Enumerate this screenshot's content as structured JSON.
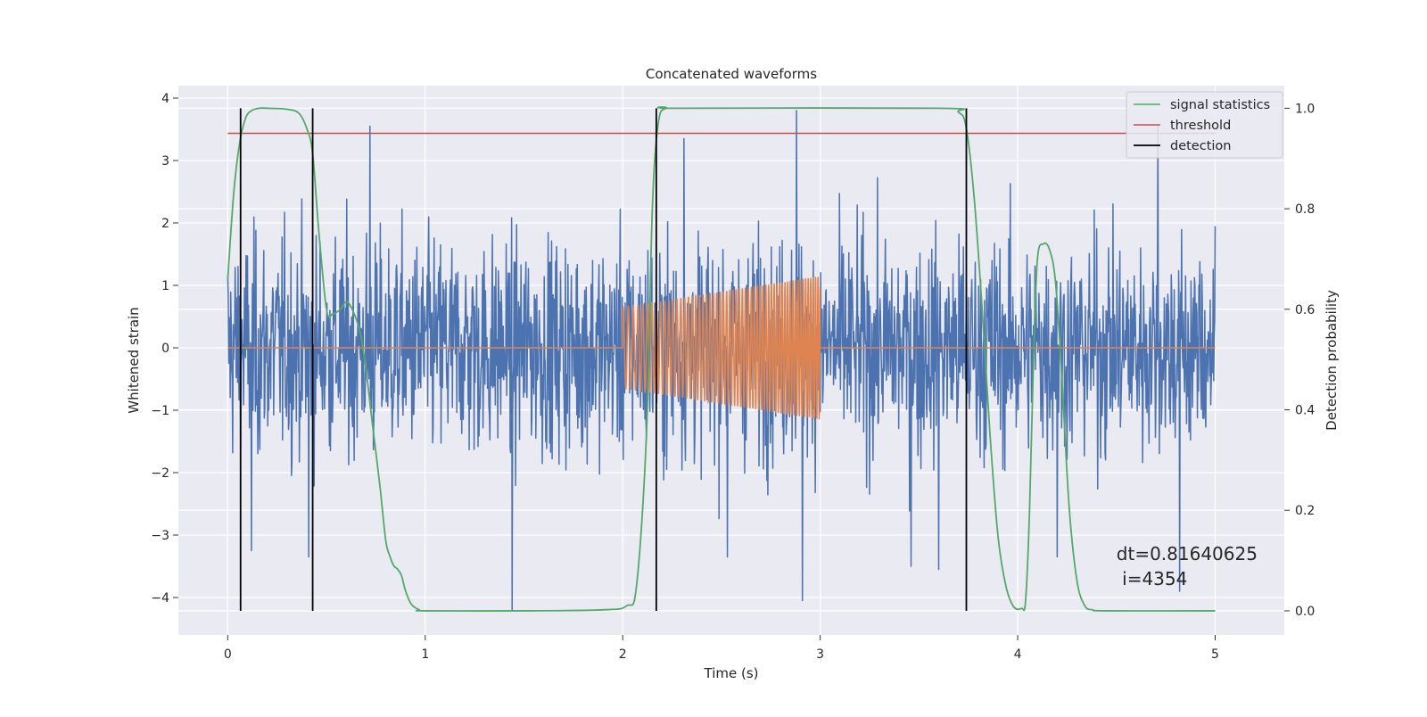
{
  "chart_data": {
    "type": "line",
    "title": "Concatenated waveforms",
    "xlabel": "Time (s)",
    "ylabel": "Whitened strain",
    "ylabel_right": "Detection probability",
    "xlim": [
      -0.25,
      5.35
    ],
    "ylim": [
      -4.6,
      4.2
    ],
    "ylim_right": [
      -0.048,
      1.045
    ],
    "x_ticks": [
      0,
      1,
      2,
      3,
      4,
      5
    ],
    "x_tick_labels": [
      "0",
      "1",
      "2",
      "3",
      "4",
      "5"
    ],
    "y_ticks": [
      -4,
      -3,
      -2,
      -1,
      0,
      1,
      2,
      3,
      4
    ],
    "y_tick_labels": [
      "−4",
      "−3",
      "−2",
      "−1",
      "0",
      "1",
      "2",
      "3",
      "4"
    ],
    "y2_ticks": [
      0.0,
      0.2,
      0.4,
      0.6,
      0.8,
      1.0
    ],
    "y2_tick_labels": [
      "0.0",
      "0.2",
      "0.4",
      "0.6",
      "0.8",
      "1.0"
    ],
    "grid": true,
    "legend_position": "top-right",
    "style": {
      "background": "#eaeaf2",
      "grid_color": "#ffffff",
      "strain_color": "#4c72b0",
      "template_color": "#dd8452",
      "signal_color": "#55a868",
      "threshold_color": "#c44e52",
      "detection_color": "#000000"
    },
    "series": [
      {
        "name": "",
        "axis": "left",
        "kind": "noise",
        "x_range": [
          0,
          5
        ],
        "amplitude": 1.2,
        "peaks": [
          {
            "x": 0.72,
            "y": 3.55
          },
          {
            "x": 0.12,
            "y": -3.25
          },
          {
            "x": 0.41,
            "y": -3.35
          },
          {
            "x": 1.44,
            "y": -4.2
          },
          {
            "x": 2.31,
            "y": 3.35
          },
          {
            "x": 2.88,
            "y": 3.8
          },
          {
            "x": 2.91,
            "y": -4.05
          },
          {
            "x": 4.71,
            "y": 3.55
          },
          {
            "x": 4.82,
            "y": -3.9
          },
          {
            "x": 3.46,
            "y": -3.5
          },
          {
            "x": 3.6,
            "y": -3.55
          },
          {
            "x": 2.53,
            "y": -3.35
          },
          {
            "x": 4.2,
            "y": -3.35
          }
        ]
      },
      {
        "name": "",
        "axis": "left",
        "kind": "chirp",
        "x_range": [
          0,
          5
        ],
        "chirp_start": 2.0,
        "chirp_end": 3.0,
        "amp_start": 0.65,
        "amp_end": 1.15
      },
      {
        "name": "signal statistics",
        "axis": "right",
        "kind": "line",
        "x": [
          0.0,
          0.03,
          0.06,
          0.09,
          0.12,
          0.16,
          0.2,
          0.3,
          0.36,
          0.4,
          0.43,
          0.46,
          0.5,
          0.53,
          0.57,
          0.6,
          0.63,
          0.67,
          0.7,
          0.73,
          0.77,
          0.8,
          0.82,
          0.84,
          0.86,
          0.88,
          0.9,
          0.93,
          0.97,
          1.0,
          1.5,
          1.9,
          2.02,
          2.07,
          2.12,
          2.15,
          2.18,
          2.22,
          2.3,
          3.6,
          3.7,
          3.74,
          3.78,
          3.82,
          3.86,
          3.9,
          3.94,
          3.98,
          4.02,
          4.04,
          4.06,
          4.08,
          4.1,
          4.13,
          4.16,
          4.19,
          4.22,
          4.26,
          4.3,
          4.34,
          4.38,
          4.45,
          5.0
        ],
        "y": [
          0.66,
          0.83,
          0.93,
          0.98,
          0.995,
          1.0,
          1.0,
          0.998,
          0.99,
          0.96,
          0.91,
          0.76,
          0.6,
          0.59,
          0.6,
          0.615,
          0.6,
          0.555,
          0.48,
          0.38,
          0.25,
          0.14,
          0.11,
          0.09,
          0.083,
          0.07,
          0.04,
          0.013,
          0.002,
          0.0,
          0.0,
          0.002,
          0.01,
          0.05,
          0.35,
          0.8,
          0.97,
          1.0,
          1.0,
          1.0,
          0.992,
          0.96,
          0.82,
          0.6,
          0.35,
          0.15,
          0.05,
          0.008,
          0.005,
          0.02,
          0.2,
          0.5,
          0.7,
          0.73,
          0.72,
          0.66,
          0.49,
          0.21,
          0.06,
          0.01,
          0.002,
          0.0,
          0.0
        ]
      },
      {
        "name": "threshold",
        "axis": "right",
        "kind": "hline",
        "x_range": [
          0,
          5
        ],
        "y": 0.95
      },
      {
        "name": "detection",
        "axis": "right",
        "kind": "vlines",
        "x": [
          0.065,
          0.43,
          2.17,
          3.74
        ],
        "y_range": [
          0.0,
          1.0
        ]
      }
    ],
    "annotation": {
      "line1": "dt=0.81640625",
      "line2": " i=4354",
      "x": 4.5,
      "y": -3.4
    }
  }
}
